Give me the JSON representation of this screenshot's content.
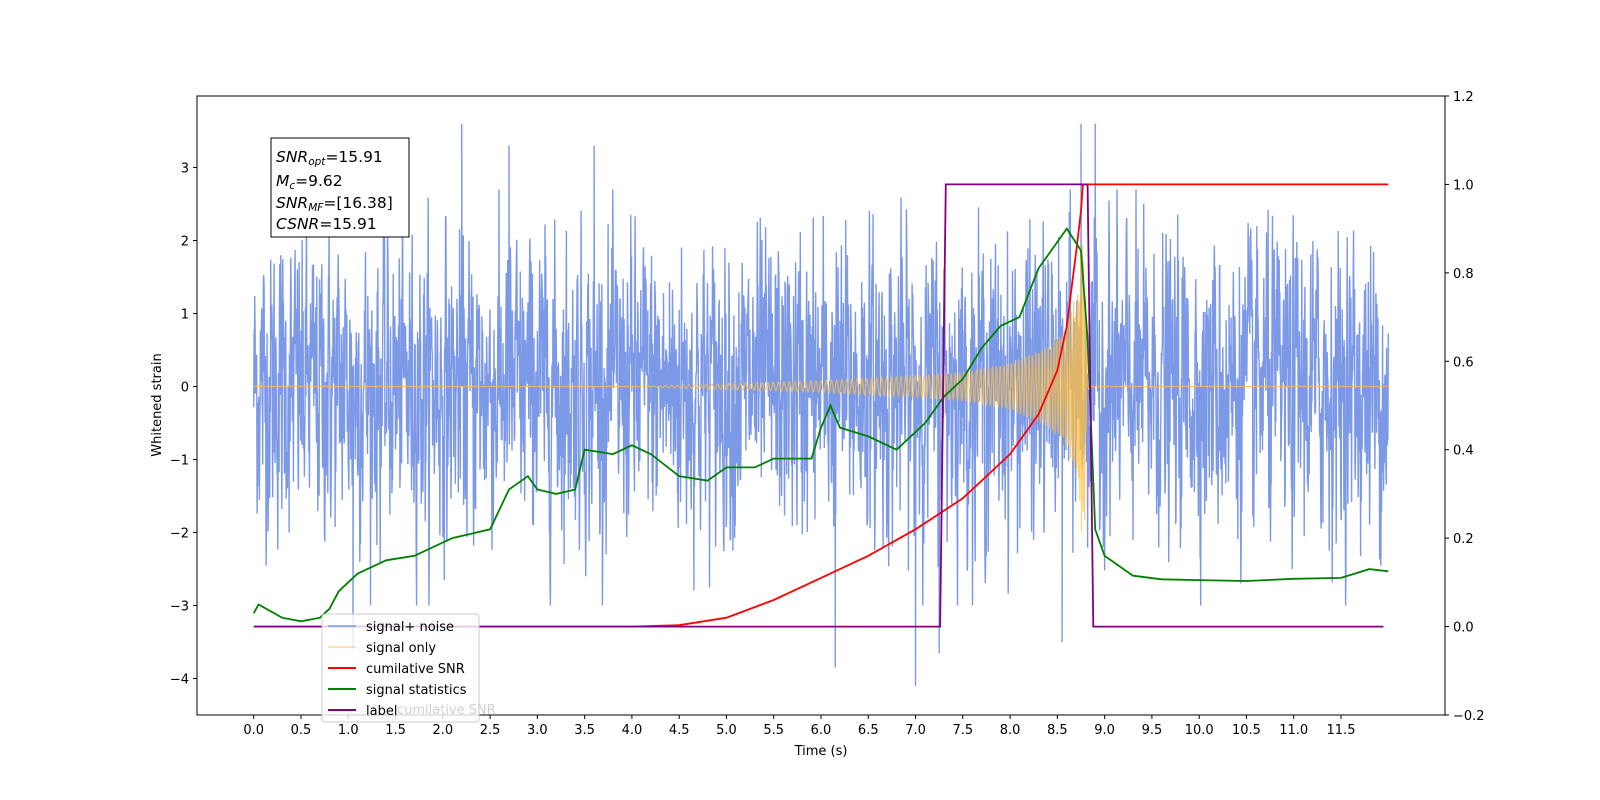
{
  "chart_data": {
    "type": "line",
    "xlabel": "Time (s)",
    "ylabel_left": "Whitened strain",
    "ylabel_right": "",
    "xlim": [
      -0.6,
      12.6
    ],
    "ylim_left": [
      -4.5,
      3.98
    ],
    "ylim_right": [
      -0.2,
      1.2
    ],
    "x_ticks": [
      "0.0",
      "0.5",
      "1.0",
      "1.5",
      "2.0",
      "2.5",
      "3.0",
      "3.5",
      "4.0",
      "4.5",
      "5.0",
      "5.5",
      "6.0",
      "6.5",
      "7.0",
      "7.5",
      "8.0",
      "8.5",
      "9.0",
      "9.5",
      "10.0",
      "10.5",
      "11.0",
      "11.5"
    ],
    "y_ticks_left": [
      "3",
      "2",
      "1",
      "0",
      "−1",
      "−2",
      "−3",
      "−4"
    ],
    "y_ticks_right": [
      "1.2",
      "1.0",
      "0.8",
      "0.6",
      "0.4",
      "0.2",
      "0.0",
      "−0.2"
    ],
    "grid": false,
    "legend_position": "lower-left",
    "annotations": {
      "snr_opt": {
        "name": "SNR",
        "sub": "opt",
        "value": "=15.91"
      },
      "mc": {
        "name": "M",
        "sub": "c",
        "value": "=9.62"
      },
      "snr_mf": {
        "name": "SNR",
        "sub": "MF",
        "value": "=[16.38]"
      },
      "csnr": {
        "name": "CSNR",
        "sub": "",
        "value": "=15.91"
      }
    },
    "series": [
      {
        "name": "signal+ noise",
        "color": "#7593e6",
        "axis": "left",
        "kind": "noise",
        "x_range": [
          0.0,
          12.0
        ],
        "envelope_typical": 2.2,
        "peak_max": 3.6,
        "peak_min": -4.1,
        "notable_peaks": [
          [
            2.2,
            3.6
          ],
          [
            2.7,
            3.3
          ],
          [
            3.6,
            3.3
          ],
          [
            8.75,
            3.6
          ],
          [
            8.9,
            3.6
          ],
          [
            7.0,
            -4.1
          ],
          [
            6.15,
            -3.85
          ],
          [
            8.55,
            -3.5
          ],
          [
            7.25,
            -3.65
          ],
          [
            1.05,
            -3.6
          ]
        ]
      },
      {
        "name": "signal only",
        "color": "#ffbf40",
        "axis": "left",
        "kind": "chirp",
        "x_range": [
          0.0,
          12.0
        ],
        "merger_time": 8.78,
        "peak_amplitude": 2.3,
        "amplitude_points": [
          [
            4.0,
            0.0
          ],
          [
            5.0,
            0.04
          ],
          [
            6.0,
            0.08
          ],
          [
            7.0,
            0.15
          ],
          [
            7.5,
            0.2
          ],
          [
            8.0,
            0.32
          ],
          [
            8.4,
            0.55
          ],
          [
            8.6,
            0.85
          ],
          [
            8.7,
            1.3
          ],
          [
            8.78,
            2.3
          ],
          [
            8.82,
            0.0
          ]
        ]
      },
      {
        "name": "cumilative SNR",
        "color": "#ff0000",
        "axis": "right",
        "points": [
          [
            0.0,
            0.0
          ],
          [
            4.0,
            0.0
          ],
          [
            4.5,
            0.003
          ],
          [
            5.0,
            0.02
          ],
          [
            5.5,
            0.06
          ],
          [
            6.0,
            0.11
          ],
          [
            6.5,
            0.16
          ],
          [
            7.0,
            0.22
          ],
          [
            7.5,
            0.29
          ],
          [
            8.0,
            0.39
          ],
          [
            8.3,
            0.48
          ],
          [
            8.5,
            0.58
          ],
          [
            8.6,
            0.68
          ],
          [
            8.7,
            0.85
          ],
          [
            8.75,
            0.94
          ],
          [
            8.77,
            1.0
          ],
          [
            12.0,
            1.0
          ]
        ]
      },
      {
        "name": "signal statistics",
        "color": "#008000",
        "axis": "right",
        "points": [
          [
            0.0,
            0.03
          ],
          [
            0.05,
            0.05
          ],
          [
            0.3,
            0.02
          ],
          [
            0.5,
            0.012
          ],
          [
            0.7,
            0.02
          ],
          [
            0.8,
            0.04
          ],
          [
            0.9,
            0.08
          ],
          [
            1.1,
            0.12
          ],
          [
            1.4,
            0.15
          ],
          [
            1.7,
            0.16
          ],
          [
            2.1,
            0.2
          ],
          [
            2.3,
            0.21
          ],
          [
            2.5,
            0.22
          ],
          [
            2.7,
            0.31
          ],
          [
            2.9,
            0.34
          ],
          [
            3.0,
            0.31
          ],
          [
            3.2,
            0.3
          ],
          [
            3.4,
            0.31
          ],
          [
            3.5,
            0.4
          ],
          [
            3.8,
            0.39
          ],
          [
            4.0,
            0.41
          ],
          [
            4.2,
            0.39
          ],
          [
            4.5,
            0.34
          ],
          [
            4.8,
            0.33
          ],
          [
            5.0,
            0.36
          ],
          [
            5.3,
            0.36
          ],
          [
            5.5,
            0.38
          ],
          [
            5.7,
            0.38
          ],
          [
            5.9,
            0.38
          ],
          [
            6.0,
            0.45
          ],
          [
            6.1,
            0.5
          ],
          [
            6.2,
            0.45
          ],
          [
            6.5,
            0.43
          ],
          [
            6.8,
            0.4
          ],
          [
            7.1,
            0.46
          ],
          [
            7.3,
            0.52
          ],
          [
            7.5,
            0.56
          ],
          [
            7.7,
            0.63
          ],
          [
            7.9,
            0.68
          ],
          [
            8.1,
            0.7
          ],
          [
            8.3,
            0.81
          ],
          [
            8.5,
            0.87
          ],
          [
            8.6,
            0.9
          ],
          [
            8.75,
            0.85
          ],
          [
            8.82,
            0.65
          ],
          [
            8.9,
            0.22
          ],
          [
            9.0,
            0.16
          ],
          [
            9.3,
            0.115
          ],
          [
            9.6,
            0.107
          ],
          [
            10.0,
            0.105
          ],
          [
            10.5,
            0.103
          ],
          [
            11.0,
            0.108
          ],
          [
            11.5,
            0.11
          ],
          [
            11.8,
            0.13
          ],
          [
            12.0,
            0.125
          ]
        ]
      },
      {
        "name": "label",
        "color": "#800080",
        "axis": "right",
        "points": [
          [
            0.0,
            0.0
          ],
          [
            7.26,
            0.0
          ],
          [
            7.32,
            1.0
          ],
          [
            8.82,
            1.0
          ],
          [
            8.88,
            0.0
          ],
          [
            11.95,
            0.0
          ]
        ]
      }
    ],
    "legend_hidden_text": "cumilative SNR"
  }
}
